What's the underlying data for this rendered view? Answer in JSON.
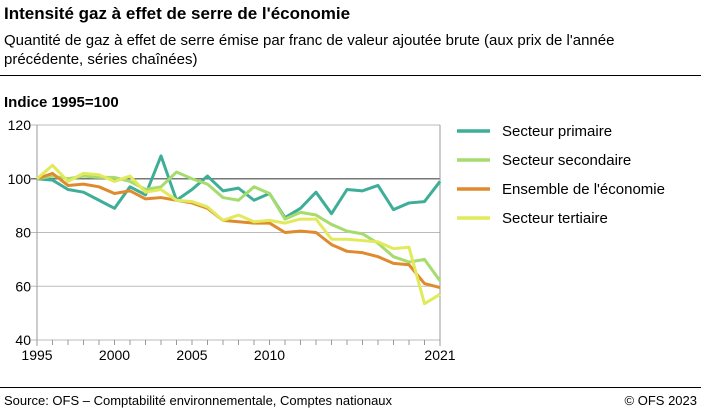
{
  "title": "Intensité gaz à effet de serre de l'économie",
  "subtitle": "Quantité de gaz à effet de serre émise par franc de valeur ajoutée brute (aux prix de l'année précédente, séries chaînées)",
  "source": "Source: OFS – Comptabilité environnementale, Comptes nationaux",
  "copyright": "© OFS 2023",
  "chart_data": {
    "type": "line",
    "ylabel": "Indice 1995=100",
    "ylim": [
      40,
      120
    ],
    "yticks": [
      40,
      60,
      80,
      100,
      120
    ],
    "xlim": [
      1995,
      2021
    ],
    "xticks": [
      1995,
      2000,
      2005,
      2010,
      2021
    ],
    "grid": true,
    "legend": "right",
    "x": [
      1995,
      1996,
      1997,
      1998,
      1999,
      2000,
      2001,
      2002,
      2003,
      2004,
      2005,
      2006,
      2007,
      2008,
      2009,
      2010,
      2011,
      2012,
      2013,
      2014,
      2015,
      2016,
      2017,
      2018,
      2019,
      2020,
      2021
    ],
    "series": [
      {
        "name": "Secteur primaire",
        "color": "#3fae98",
        "values": [
          100,
          99.5,
          96,
          95,
          92,
          89,
          97,
          94,
          108.5,
          92,
          96,
          101,
          95.5,
          96.5,
          92,
          94.5,
          85.5,
          89,
          95,
          87,
          96,
          95.5,
          97.5,
          88.5,
          91,
          91.5,
          99
        ]
      },
      {
        "name": "Secteur secondaire",
        "color": "#a6dc6e",
        "values": [
          100,
          101,
          100,
          101,
          100.5,
          100.5,
          99,
          96,
          97,
          102.5,
          100,
          98,
          93,
          92,
          97,
          94.5,
          85,
          87.5,
          86.5,
          83,
          80.5,
          79.5,
          76,
          71,
          69,
          70,
          62
        ]
      },
      {
        "name": "Ensemble de l'économie",
        "color": "#e08a2e",
        "values": [
          100,
          102,
          97.5,
          98,
          97,
          94.5,
          95.5,
          92.5,
          93,
          92,
          91,
          89,
          84.5,
          84,
          83.5,
          83.5,
          80,
          80.5,
          80,
          75.5,
          73,
          72.5,
          71,
          68.5,
          68,
          61,
          59.5
        ]
      },
      {
        "name": "Secteur tertiaire",
        "color": "#e1ea5a",
        "values": [
          100,
          105,
          99,
          102,
          101.5,
          99,
          101,
          95,
          96,
          92,
          91.5,
          89.5,
          84.5,
          86.5,
          84,
          84.5,
          83.5,
          85,
          85,
          77.5,
          77.5,
          77,
          76.5,
          74,
          74.5,
          53.5,
          57
        ]
      }
    ]
  }
}
